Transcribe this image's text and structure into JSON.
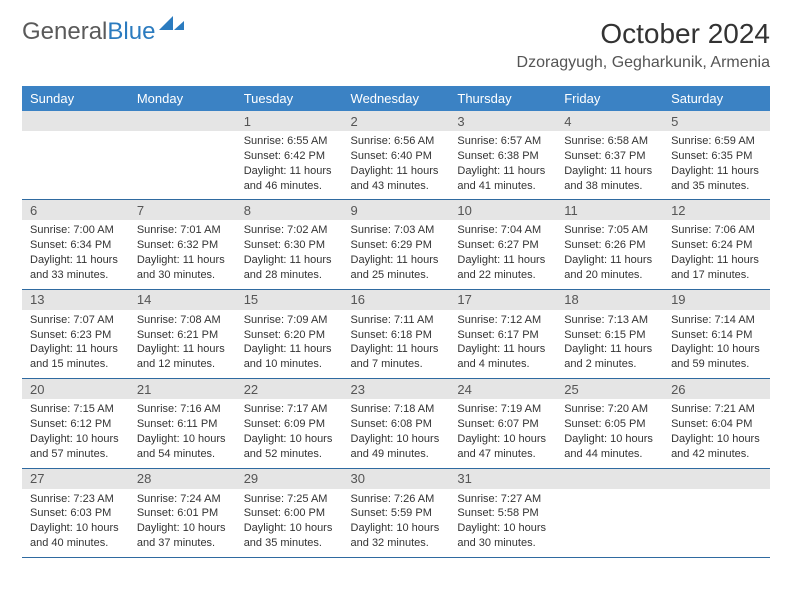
{
  "logo": {
    "part1": "General",
    "part2": "Blue",
    "mark_color": "#2b7bbf"
  },
  "title": {
    "month": "October 2024",
    "location": "Dzoragyugh, Gegharkunik, Armenia"
  },
  "colors": {
    "header_bg": "#3b82c4",
    "header_text": "#ffffff",
    "daynum_bg": "#e5e5e5",
    "daynum_text": "#555555",
    "cell_border": "#2f6aa0",
    "body_text": "#333333"
  },
  "weekdays": [
    "Sunday",
    "Monday",
    "Tuesday",
    "Wednesday",
    "Thursday",
    "Friday",
    "Saturday"
  ],
  "cells": [
    {
      "day": "",
      "sunrise": "",
      "sunset": "",
      "daylight": ""
    },
    {
      "day": "",
      "sunrise": "",
      "sunset": "",
      "daylight": ""
    },
    {
      "day": "1",
      "sunrise": "Sunrise: 6:55 AM",
      "sunset": "Sunset: 6:42 PM",
      "daylight": "Daylight: 11 hours and 46 minutes."
    },
    {
      "day": "2",
      "sunrise": "Sunrise: 6:56 AM",
      "sunset": "Sunset: 6:40 PM",
      "daylight": "Daylight: 11 hours and 43 minutes."
    },
    {
      "day": "3",
      "sunrise": "Sunrise: 6:57 AM",
      "sunset": "Sunset: 6:38 PM",
      "daylight": "Daylight: 11 hours and 41 minutes."
    },
    {
      "day": "4",
      "sunrise": "Sunrise: 6:58 AM",
      "sunset": "Sunset: 6:37 PM",
      "daylight": "Daylight: 11 hours and 38 minutes."
    },
    {
      "day": "5",
      "sunrise": "Sunrise: 6:59 AM",
      "sunset": "Sunset: 6:35 PM",
      "daylight": "Daylight: 11 hours and 35 minutes."
    },
    {
      "day": "6",
      "sunrise": "Sunrise: 7:00 AM",
      "sunset": "Sunset: 6:34 PM",
      "daylight": "Daylight: 11 hours and 33 minutes."
    },
    {
      "day": "7",
      "sunrise": "Sunrise: 7:01 AM",
      "sunset": "Sunset: 6:32 PM",
      "daylight": "Daylight: 11 hours and 30 minutes."
    },
    {
      "day": "8",
      "sunrise": "Sunrise: 7:02 AM",
      "sunset": "Sunset: 6:30 PM",
      "daylight": "Daylight: 11 hours and 28 minutes."
    },
    {
      "day": "9",
      "sunrise": "Sunrise: 7:03 AM",
      "sunset": "Sunset: 6:29 PM",
      "daylight": "Daylight: 11 hours and 25 minutes."
    },
    {
      "day": "10",
      "sunrise": "Sunrise: 7:04 AM",
      "sunset": "Sunset: 6:27 PM",
      "daylight": "Daylight: 11 hours and 22 minutes."
    },
    {
      "day": "11",
      "sunrise": "Sunrise: 7:05 AM",
      "sunset": "Sunset: 6:26 PM",
      "daylight": "Daylight: 11 hours and 20 minutes."
    },
    {
      "day": "12",
      "sunrise": "Sunrise: 7:06 AM",
      "sunset": "Sunset: 6:24 PM",
      "daylight": "Daylight: 11 hours and 17 minutes."
    },
    {
      "day": "13",
      "sunrise": "Sunrise: 7:07 AM",
      "sunset": "Sunset: 6:23 PM",
      "daylight": "Daylight: 11 hours and 15 minutes."
    },
    {
      "day": "14",
      "sunrise": "Sunrise: 7:08 AM",
      "sunset": "Sunset: 6:21 PM",
      "daylight": "Daylight: 11 hours and 12 minutes."
    },
    {
      "day": "15",
      "sunrise": "Sunrise: 7:09 AM",
      "sunset": "Sunset: 6:20 PM",
      "daylight": "Daylight: 11 hours and 10 minutes."
    },
    {
      "day": "16",
      "sunrise": "Sunrise: 7:11 AM",
      "sunset": "Sunset: 6:18 PM",
      "daylight": "Daylight: 11 hours and 7 minutes."
    },
    {
      "day": "17",
      "sunrise": "Sunrise: 7:12 AM",
      "sunset": "Sunset: 6:17 PM",
      "daylight": "Daylight: 11 hours and 4 minutes."
    },
    {
      "day": "18",
      "sunrise": "Sunrise: 7:13 AM",
      "sunset": "Sunset: 6:15 PM",
      "daylight": "Daylight: 11 hours and 2 minutes."
    },
    {
      "day": "19",
      "sunrise": "Sunrise: 7:14 AM",
      "sunset": "Sunset: 6:14 PM",
      "daylight": "Daylight: 10 hours and 59 minutes."
    },
    {
      "day": "20",
      "sunrise": "Sunrise: 7:15 AM",
      "sunset": "Sunset: 6:12 PM",
      "daylight": "Daylight: 10 hours and 57 minutes."
    },
    {
      "day": "21",
      "sunrise": "Sunrise: 7:16 AM",
      "sunset": "Sunset: 6:11 PM",
      "daylight": "Daylight: 10 hours and 54 minutes."
    },
    {
      "day": "22",
      "sunrise": "Sunrise: 7:17 AM",
      "sunset": "Sunset: 6:09 PM",
      "daylight": "Daylight: 10 hours and 52 minutes."
    },
    {
      "day": "23",
      "sunrise": "Sunrise: 7:18 AM",
      "sunset": "Sunset: 6:08 PM",
      "daylight": "Daylight: 10 hours and 49 minutes."
    },
    {
      "day": "24",
      "sunrise": "Sunrise: 7:19 AM",
      "sunset": "Sunset: 6:07 PM",
      "daylight": "Daylight: 10 hours and 47 minutes."
    },
    {
      "day": "25",
      "sunrise": "Sunrise: 7:20 AM",
      "sunset": "Sunset: 6:05 PM",
      "daylight": "Daylight: 10 hours and 44 minutes."
    },
    {
      "day": "26",
      "sunrise": "Sunrise: 7:21 AM",
      "sunset": "Sunset: 6:04 PM",
      "daylight": "Daylight: 10 hours and 42 minutes."
    },
    {
      "day": "27",
      "sunrise": "Sunrise: 7:23 AM",
      "sunset": "Sunset: 6:03 PM",
      "daylight": "Daylight: 10 hours and 40 minutes."
    },
    {
      "day": "28",
      "sunrise": "Sunrise: 7:24 AM",
      "sunset": "Sunset: 6:01 PM",
      "daylight": "Daylight: 10 hours and 37 minutes."
    },
    {
      "day": "29",
      "sunrise": "Sunrise: 7:25 AM",
      "sunset": "Sunset: 6:00 PM",
      "daylight": "Daylight: 10 hours and 35 minutes."
    },
    {
      "day": "30",
      "sunrise": "Sunrise: 7:26 AM",
      "sunset": "Sunset: 5:59 PM",
      "daylight": "Daylight: 10 hours and 32 minutes."
    },
    {
      "day": "31",
      "sunrise": "Sunrise: 7:27 AM",
      "sunset": "Sunset: 5:58 PM",
      "daylight": "Daylight: 10 hours and 30 minutes."
    },
    {
      "day": "",
      "sunrise": "",
      "sunset": "",
      "daylight": ""
    },
    {
      "day": "",
      "sunrise": "",
      "sunset": "",
      "daylight": ""
    }
  ]
}
